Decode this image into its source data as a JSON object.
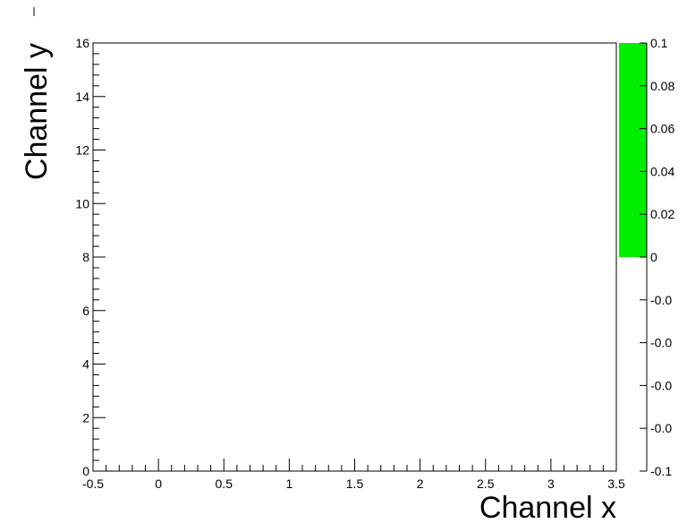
{
  "chart_data": {
    "type": "heatmap",
    "title": "",
    "xlabel": "Channel x",
    "ylabel": "Channel y",
    "xlim": [
      -0.5,
      3.5
    ],
    "ylim": [
      0,
      16
    ],
    "x_ticks": [
      "-0.5",
      "0",
      "0.5",
      "1",
      "1.5",
      "2",
      "2.5",
      "3",
      "3.5"
    ],
    "y_ticks": [
      "0",
      "2",
      "4",
      "6",
      "8",
      "10",
      "12",
      "14",
      "16"
    ],
    "zlim": [
      -0.1,
      0.1
    ],
    "z_ticks": [
      "0.1",
      "0.08",
      "0.06",
      "0.04",
      "0.02",
      "0",
      "-0.0",
      "-0.0",
      "-0.0",
      "-0.0",
      "-0.1"
    ],
    "palette_colors": [
      "#00ee00"
    ],
    "cells": []
  }
}
